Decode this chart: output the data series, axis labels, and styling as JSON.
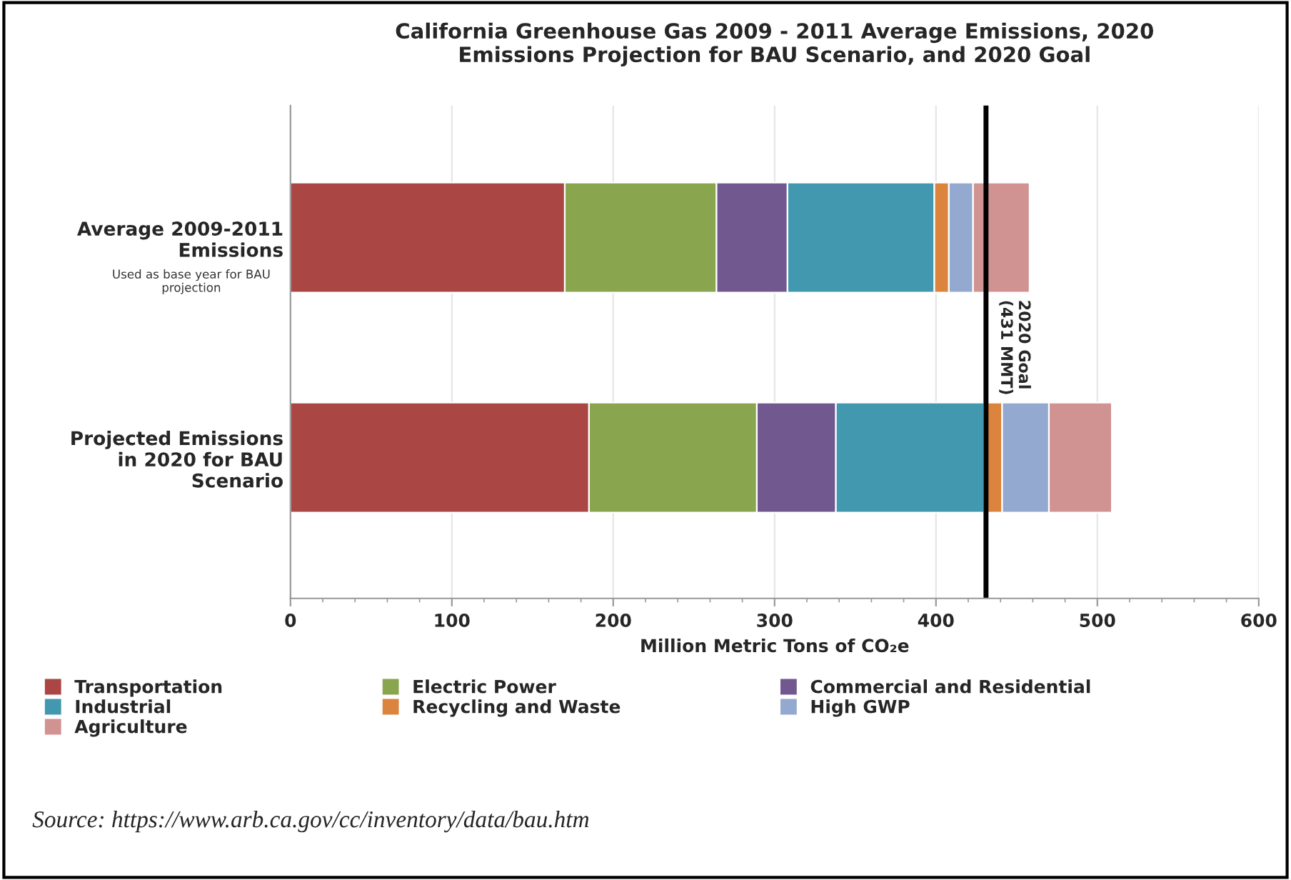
{
  "chart_data": {
    "type": "bar",
    "orientation": "horizontal",
    "stacked": true,
    "title": "California Greenhouse Gas 2009 - 2011 Average Emissions, 2020\nEmissions Projection for BAU Scenario, and 2020 Goal",
    "xlabel": "Million Metric Tons of CO₂e",
    "categories": [
      "Average 2009-2011\nEmissions",
      "Projected Emissions\nin 2020 for BAU\nScenario"
    ],
    "series": [
      {
        "name": "Transportation",
        "color": "#aa4643",
        "values": [
          170,
          185
        ]
      },
      {
        "name": "Electric Power",
        "color": "#89a54e",
        "values": [
          94,
          104
        ]
      },
      {
        "name": "Commercial and Residential",
        "color": "#71588f",
        "values": [
          44,
          49
        ]
      },
      {
        "name": "Industrial",
        "color": "#4198af",
        "values": [
          91,
          92
        ]
      },
      {
        "name": "Recycling and Waste",
        "color": "#db843d",
        "values": [
          9,
          11
        ]
      },
      {
        "name": "High GWP",
        "color": "#93a9cf",
        "values": [
          15,
          29
        ]
      },
      {
        "name": "Agriculture",
        "color": "#d19392",
        "values": [
          35,
          39
        ]
      }
    ],
    "xlim": [
      0,
      600
    ],
    "xticks": [
      0,
      100,
      200,
      300,
      400,
      500,
      600
    ],
    "ref_lines": [
      {
        "axis": "x",
        "value": 431,
        "label": "2020 Goal\n(431 MMT)",
        "color": "#000000"
      }
    ],
    "annotations": [
      "Used as base year for BAU\nprojection",
      "Source: https://www.arb.ca.gov/cc/inventory/data/bau.htm"
    ],
    "grid": "x",
    "legend": "bottom"
  }
}
